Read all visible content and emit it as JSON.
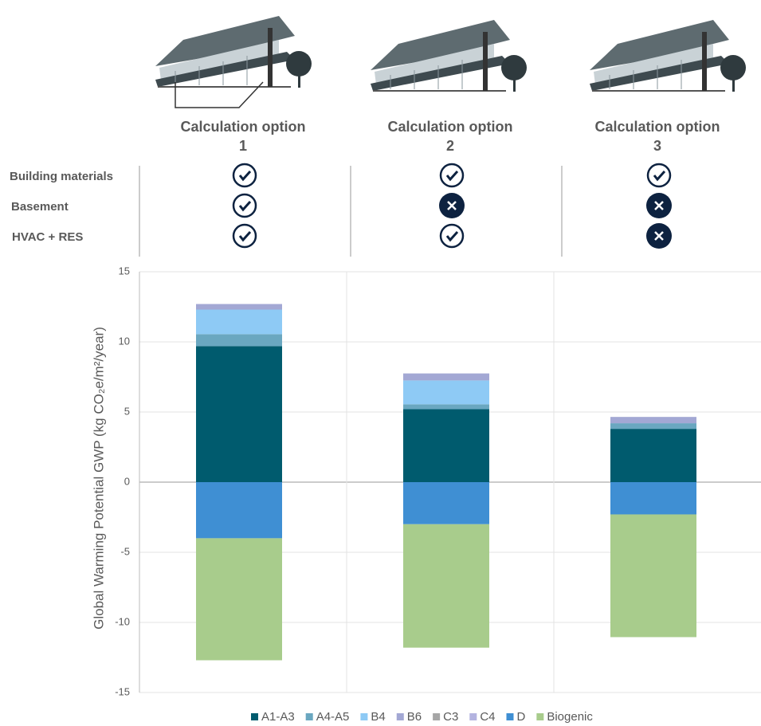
{
  "chart_data": {
    "type": "stacked_bar",
    "categories": [
      "Calculation option 1",
      "Calculation option 2",
      "Calculation option 3"
    ],
    "criteria": [
      "Building materials",
      "Basement",
      "HVAC + RES"
    ],
    "included": [
      [
        true,
        true,
        true
      ],
      [
        true,
        false,
        false
      ],
      [
        true,
        true,
        false
      ]
    ],
    "y_label": "Global Warming Potential GWP (kg CO₂e/m²/year)",
    "ylim": [
      -15,
      15
    ],
    "yticks": [
      -15,
      -10,
      -5,
      0,
      5,
      10,
      15
    ],
    "grid": true,
    "legend": "bottom",
    "series": [
      {
        "name": "A1-A3",
        "color": "#005b6e",
        "values": [
          9.7,
          5.2,
          3.8
        ]
      },
      {
        "name": "A4-A5",
        "color": "#6aa7c0",
        "values": [
          0.85,
          0.35,
          0.4
        ]
      },
      {
        "name": "B4",
        "color": "#8ecaf5",
        "values": [
          1.75,
          1.7,
          0
        ]
      },
      {
        "name": "B6",
        "color": "#a3a8d4",
        "values": [
          0.4,
          0.5,
          0.45
        ]
      },
      {
        "name": "C3",
        "color": "#a6a6a6",
        "values": [
          0,
          0,
          0
        ]
      },
      {
        "name": "C4",
        "color": "#b3b3e0",
        "values": [
          0,
          0,
          0
        ]
      },
      {
        "name": "D",
        "color": "#3f8fd3",
        "values": [
          -4.0,
          -3.0,
          -2.3
        ]
      },
      {
        "name": "Biogenic",
        "color": "#a8cc8c",
        "values": [
          -8.7,
          -8.8,
          -8.75
        ]
      }
    ]
  }
}
